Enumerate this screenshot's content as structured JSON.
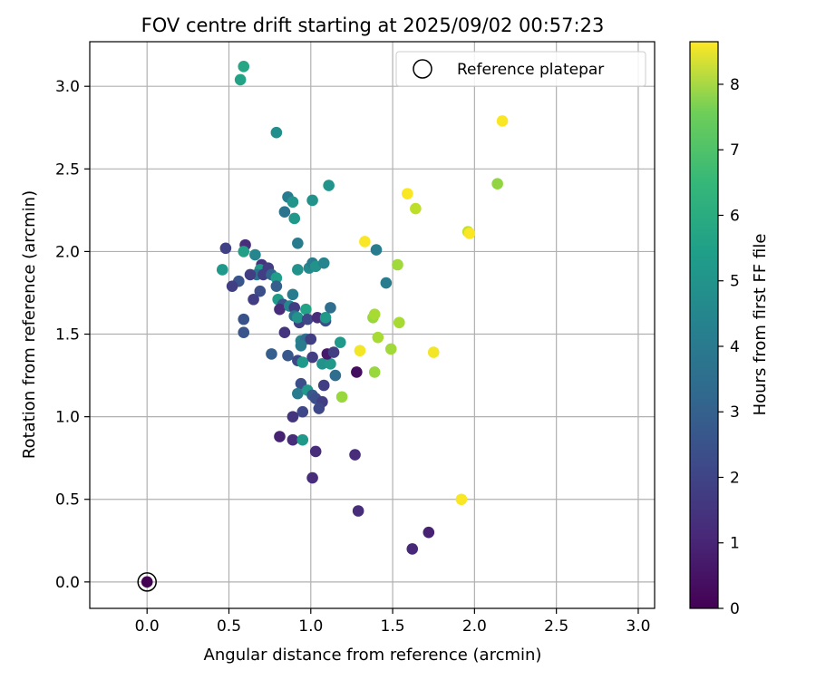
{
  "chart_data": {
    "type": "scatter",
    "title": "FOV centre drift starting at 2025/09/02 00:57:23",
    "xlabel": "Angular distance from reference (arcmin)",
    "ylabel": "Rotation from reference (arcmin)",
    "xlim": [
      -0.35,
      3.1
    ],
    "ylim": [
      -0.16,
      3.27
    ],
    "xticks": [
      0.0,
      0.5,
      1.0,
      1.5,
      2.0,
      2.5,
      3.0
    ],
    "yticks": [
      0.0,
      0.5,
      1.0,
      1.5,
      2.0,
      2.5,
      3.0
    ],
    "xtick_labels": [
      "0.0",
      "0.5",
      "1.0",
      "1.5",
      "2.0",
      "2.5",
      "3.0"
    ],
    "ytick_labels": [
      "0.0",
      "0.5",
      "1.0",
      "1.5",
      "2.0",
      "2.5",
      "3.0"
    ],
    "grid": true,
    "legend": {
      "position": "top-right",
      "entries": [
        "Reference platepar"
      ]
    },
    "reference_point": {
      "x": 0.0,
      "y": 0.0,
      "hours": 0.0
    },
    "colorbar": {
      "label": "Hours from first FF file",
      "range": [
        0,
        8.65
      ],
      "ticks": [
        0,
        1,
        2,
        3,
        4,
        5,
        6,
        7,
        8
      ],
      "tick_labels": [
        "0",
        "1",
        "2",
        "3",
        "4",
        "5",
        "6",
        "7",
        "8"
      ],
      "colormap": "viridis"
    },
    "points": [
      {
        "x": 0.59,
        "y": 3.12,
        "h": 5.1
      },
      {
        "x": 0.57,
        "y": 3.04,
        "h": 5.0
      },
      {
        "x": 0.79,
        "y": 2.72,
        "h": 4.3
      },
      {
        "x": 1.11,
        "y": 2.4,
        "h": 4.5
      },
      {
        "x": 0.86,
        "y": 2.33,
        "h": 3.6
      },
      {
        "x": 1.01,
        "y": 2.31,
        "h": 4.4
      },
      {
        "x": 0.89,
        "y": 2.3,
        "h": 4.5
      },
      {
        "x": 0.84,
        "y": 2.24,
        "h": 3.3
      },
      {
        "x": 0.9,
        "y": 2.2,
        "h": 4.6
      },
      {
        "x": 0.48,
        "y": 2.02,
        "h": 1.7
      },
      {
        "x": 0.6,
        "y": 2.04,
        "h": 1.1
      },
      {
        "x": 0.92,
        "y": 2.05,
        "h": 3.6
      },
      {
        "x": 0.59,
        "y": 2.0,
        "h": 4.9
      },
      {
        "x": 0.66,
        "y": 1.98,
        "h": 4.0
      },
      {
        "x": 0.7,
        "y": 1.92,
        "h": 1.3
      },
      {
        "x": 0.69,
        "y": 1.89,
        "h": 4.6
      },
      {
        "x": 0.67,
        "y": 1.86,
        "h": 3.3
      },
      {
        "x": 0.74,
        "y": 1.9,
        "h": 1.6
      },
      {
        "x": 0.46,
        "y": 1.89,
        "h": 4.6
      },
      {
        "x": 0.56,
        "y": 1.82,
        "h": 2.3
      },
      {
        "x": 0.52,
        "y": 1.79,
        "h": 1.6
      },
      {
        "x": 0.63,
        "y": 1.86,
        "h": 1.6
      },
      {
        "x": 0.71,
        "y": 1.86,
        "h": 1.6
      },
      {
        "x": 0.76,
        "y": 1.86,
        "h": 2.8
      },
      {
        "x": 0.79,
        "y": 1.84,
        "h": 4.8
      },
      {
        "x": 0.79,
        "y": 1.79,
        "h": 2.6
      },
      {
        "x": 0.69,
        "y": 1.76,
        "h": 2.1
      },
      {
        "x": 0.65,
        "y": 1.71,
        "h": 1.6
      },
      {
        "x": 0.8,
        "y": 1.71,
        "h": 4.7
      },
      {
        "x": 0.83,
        "y": 1.68,
        "h": 2.3
      },
      {
        "x": 0.81,
        "y": 1.65,
        "h": 1.1
      },
      {
        "x": 0.87,
        "y": 1.67,
        "h": 3.9
      },
      {
        "x": 0.89,
        "y": 1.74,
        "h": 3.6
      },
      {
        "x": 0.92,
        "y": 1.89,
        "h": 4.4
      },
      {
        "x": 0.99,
        "y": 1.9,
        "h": 4.1
      },
      {
        "x": 1.01,
        "y": 1.93,
        "h": 3.6
      },
      {
        "x": 1.03,
        "y": 1.91,
        "h": 4.4
      },
      {
        "x": 1.08,
        "y": 1.93,
        "h": 3.9
      },
      {
        "x": 1.46,
        "y": 1.81,
        "h": 3.6
      },
      {
        "x": 1.4,
        "y": 2.01,
        "h": 3.6
      },
      {
        "x": 1.33,
        "y": 2.06,
        "h": 8.6
      },
      {
        "x": 1.53,
        "y": 1.92,
        "h": 7.4
      },
      {
        "x": 0.59,
        "y": 1.59,
        "h": 2.2
      },
      {
        "x": 0.59,
        "y": 1.51,
        "h": 2.3
      },
      {
        "x": 0.9,
        "y": 1.66,
        "h": 1.6
      },
      {
        "x": 0.9,
        "y": 1.61,
        "h": 3.2
      },
      {
        "x": 0.93,
        "y": 1.57,
        "h": 1.6
      },
      {
        "x": 0.92,
        "y": 1.6,
        "h": 4.4
      },
      {
        "x": 0.97,
        "y": 1.65,
        "h": 5.0
      },
      {
        "x": 0.98,
        "y": 1.59,
        "h": 1.9
      },
      {
        "x": 1.04,
        "y": 1.6,
        "h": 1.1
      },
      {
        "x": 1.09,
        "y": 1.58,
        "h": 2.1
      },
      {
        "x": 1.09,
        "y": 1.6,
        "h": 4.6
      },
      {
        "x": 1.12,
        "y": 1.66,
        "h": 3.1
      },
      {
        "x": 0.84,
        "y": 1.51,
        "h": 1.3
      },
      {
        "x": 0.94,
        "y": 1.46,
        "h": 3.9
      },
      {
        "x": 0.97,
        "y": 1.47,
        "h": 3.1
      },
      {
        "x": 1.0,
        "y": 1.47,
        "h": 1.6
      },
      {
        "x": 0.94,
        "y": 1.43,
        "h": 3.6
      },
      {
        "x": 1.18,
        "y": 1.45,
        "h": 4.6
      },
      {
        "x": 0.76,
        "y": 1.38,
        "h": 2.6
      },
      {
        "x": 0.86,
        "y": 1.37,
        "h": 2.4
      },
      {
        "x": 1.01,
        "y": 1.36,
        "h": 1.6
      },
      {
        "x": 0.92,
        "y": 1.34,
        "h": 1.9
      },
      {
        "x": 0.95,
        "y": 1.33,
        "h": 4.6
      },
      {
        "x": 1.07,
        "y": 1.32,
        "h": 4.4
      },
      {
        "x": 1.12,
        "y": 1.32,
        "h": 4.6
      },
      {
        "x": 1.1,
        "y": 1.38,
        "h": 0.6
      },
      {
        "x": 1.14,
        "y": 1.39,
        "h": 1.6
      },
      {
        "x": 1.15,
        "y": 1.25,
        "h": 3.1
      },
      {
        "x": 1.28,
        "y": 1.27,
        "h": 0.3
      },
      {
        "x": 0.94,
        "y": 1.2,
        "h": 2.1
      },
      {
        "x": 1.08,
        "y": 1.19,
        "h": 1.6
      },
      {
        "x": 0.92,
        "y": 1.14,
        "h": 3.6
      },
      {
        "x": 0.98,
        "y": 1.16,
        "h": 4.6
      },
      {
        "x": 1.01,
        "y": 1.13,
        "h": 2.4
      },
      {
        "x": 1.03,
        "y": 1.11,
        "h": 2.1
      },
      {
        "x": 1.07,
        "y": 1.09,
        "h": 1.6
      },
      {
        "x": 1.05,
        "y": 1.05,
        "h": 1.9
      },
      {
        "x": 0.95,
        "y": 1.03,
        "h": 1.9
      },
      {
        "x": 0.89,
        "y": 1.0,
        "h": 1.3
      },
      {
        "x": 0.81,
        "y": 0.88,
        "h": 0.8
      },
      {
        "x": 0.89,
        "y": 0.86,
        "h": 1.1
      },
      {
        "x": 0.95,
        "y": 0.86,
        "h": 4.6
      },
      {
        "x": 1.03,
        "y": 0.79,
        "h": 1.1
      },
      {
        "x": 1.27,
        "y": 0.77,
        "h": 1.1
      },
      {
        "x": 1.01,
        "y": 0.63,
        "h": 1.1
      },
      {
        "x": 1.29,
        "y": 0.43,
        "h": 1.1
      },
      {
        "x": 1.72,
        "y": 0.3,
        "h": 0.8
      },
      {
        "x": 1.62,
        "y": 0.2,
        "h": 1.0
      },
      {
        "x": 1.19,
        "y": 1.12,
        "h": 7.3
      },
      {
        "x": 1.39,
        "y": 1.27,
        "h": 7.3
      },
      {
        "x": 1.3,
        "y": 1.4,
        "h": 8.5
      },
      {
        "x": 1.41,
        "y": 1.48,
        "h": 7.5
      },
      {
        "x": 1.49,
        "y": 1.41,
        "h": 7.4
      },
      {
        "x": 1.75,
        "y": 1.39,
        "h": 8.5
      },
      {
        "x": 1.38,
        "y": 1.6,
        "h": 7.3
      },
      {
        "x": 1.39,
        "y": 1.62,
        "h": 7.5
      },
      {
        "x": 1.54,
        "y": 1.57,
        "h": 7.5
      },
      {
        "x": 1.59,
        "y": 2.35,
        "h": 8.6
      },
      {
        "x": 1.64,
        "y": 2.26,
        "h": 7.8
      },
      {
        "x": 1.96,
        "y": 2.12,
        "h": 7.9
      },
      {
        "x": 1.97,
        "y": 2.11,
        "h": 8.6
      },
      {
        "x": 2.14,
        "y": 2.41,
        "h": 7.2
      },
      {
        "x": 2.17,
        "y": 2.79,
        "h": 8.6
      },
      {
        "x": 1.92,
        "y": 0.5,
        "h": 8.6
      }
    ]
  }
}
